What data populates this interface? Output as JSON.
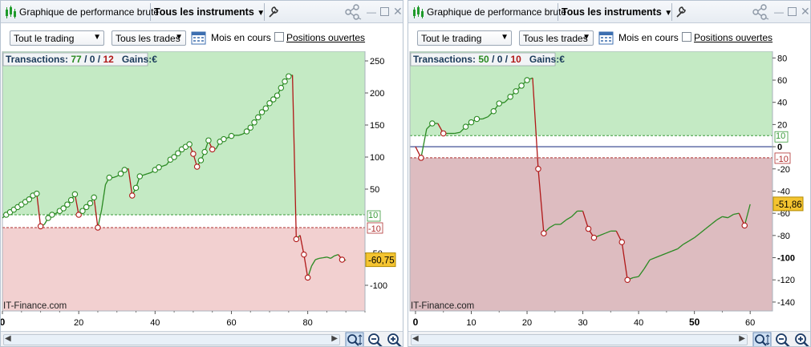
{
  "panels": [
    {
      "window_title": "Graphique de performance brute",
      "instrument_selector": "Tous les instruments",
      "trading_selector": "Tout le trading",
      "trades_selector": "Tous les trades",
      "period_label": "Mois en cours",
      "open_positions_label": "Positions ouvertes",
      "open_positions_checked": false,
      "stats": {
        "label": "Transactions:",
        "wins": "77",
        "even": "0",
        "losses": "12",
        "sep": "/",
        "gains_label": "Gains:",
        "gains_value": "€"
      },
      "watermark": "IT-Finance.com",
      "current_value_label": "-60,75",
      "chart_data": {
        "type": "line",
        "title": "",
        "xlabel": "",
        "ylabel": "",
        "xlim": [
          0,
          95
        ],
        "ylim": [
          -140,
          265
        ],
        "x_ticks": [
          0,
          20,
          40,
          60,
          80
        ],
        "x_tick_labels": [
          "0",
          "20",
          "40",
          "60",
          "80"
        ],
        "y_ticks": [
          250,
          200,
          150,
          100,
          50,
          -50,
          -100
        ],
        "y_tick_labels": [
          "250",
          "200",
          "150",
          "100",
          "50",
          "-50",
          "-100"
        ],
        "bands": {
          "upper": 10,
          "lower": -10,
          "upper_label": "10",
          "lower_label": "-10"
        },
        "series": [
          {
            "values": [
              [
                0,
                5
              ],
              [
                1,
                10
              ],
              [
                2,
                14
              ],
              [
                3,
                18
              ],
              [
                4,
                22
              ],
              [
                5,
                26
              ],
              [
                6,
                30
              ],
              [
                7,
                34
              ],
              [
                8,
                40
              ],
              [
                9,
                43
              ],
              [
                10,
                -8
              ],
              [
                11,
                -5
              ],
              [
                12,
                5
              ],
              [
                13,
                10
              ],
              [
                14,
                12
              ],
              [
                15,
                16
              ],
              [
                16,
                20
              ],
              [
                17,
                26
              ],
              [
                18,
                33
              ],
              [
                19,
                42
              ],
              [
                20,
                10
              ],
              [
                21,
                16
              ],
              [
                22,
                22
              ],
              [
                23,
                28
              ],
              [
                24,
                37
              ],
              [
                25,
                -10
              ],
              [
                26,
                18
              ],
              [
                27,
                57
              ],
              [
                28,
                68
              ],
              [
                29,
                68
              ],
              [
                30,
                70
              ],
              [
                31,
                74
              ],
              [
                32,
                80
              ],
              [
                33,
                82
              ],
              [
                34,
                40
              ],
              [
                35,
                52
              ],
              [
                36,
                70
              ],
              [
                37,
                72
              ],
              [
                38,
                74
              ],
              [
                39,
                76
              ],
              [
                40,
                80
              ],
              [
                41,
                84
              ],
              [
                42,
                86
              ],
              [
                43,
                88
              ],
              [
                44,
                96
              ],
              [
                45,
                100
              ],
              [
                46,
                106
              ],
              [
                47,
                112
              ],
              [
                48,
                116
              ],
              [
                49,
                120
              ],
              [
                50,
                105
              ],
              [
                51,
                85
              ],
              [
                52,
                95
              ],
              [
                53,
                108
              ],
              [
                54,
                126
              ],
              [
                55,
                112
              ],
              [
                56,
                113
              ],
              [
                57,
                124
              ],
              [
                58,
                128
              ],
              [
                59,
                130
              ],
              [
                60,
                133
              ],
              [
                61,
                134
              ],
              [
                62,
                134
              ],
              [
                63,
                136
              ],
              [
                64,
                140
              ],
              [
                65,
                146
              ],
              [
                66,
                154
              ],
              [
                67,
                162
              ],
              [
                68,
                170
              ],
              [
                69,
                176
              ],
              [
                70,
                184
              ],
              [
                71,
                190
              ],
              [
                72,
                196
              ],
              [
                73,
                208
              ],
              [
                74,
                218
              ],
              [
                75,
                226
              ],
              [
                76,
                228
              ],
              [
                77,
                -28
              ],
              [
                78,
                -22
              ],
              [
                79,
                -52
              ],
              [
                80,
                -88
              ],
              [
                81,
                -70
              ],
              [
                82,
                -60
              ],
              [
                83,
                -58
              ],
              [
                84,
                -57
              ],
              [
                85,
                -56
              ],
              [
                86,
                -58
              ],
              [
                87,
                -54
              ],
              [
                88,
                -52
              ],
              [
                89,
                -60
              ],
              [
                90,
                -60.75
              ]
            ]
          }
        ]
      }
    },
    {
      "window_title": "Graphique de performance brute",
      "instrument_selector": "Tous les instruments",
      "trading_selector": "Tout le trading",
      "trades_selector": "Tous les trades",
      "period_label": "Mois en cours",
      "open_positions_label": "Positions ouvertes",
      "open_positions_checked": false,
      "stats": {
        "label": "Transactions:",
        "wins": "50",
        "even": "0",
        "losses": "10",
        "sep": "/",
        "gains_label": "Gains:",
        "gains_value": "€"
      },
      "watermark": "IT-Finance.com",
      "current_value_label": "-51,86",
      "chart_data": {
        "type": "line",
        "title": "",
        "xlabel": "",
        "ylabel": "",
        "xlim": [
          -1,
          64
        ],
        "ylim": [
          -148,
          86
        ],
        "x_ticks": [
          0,
          10,
          20,
          30,
          40,
          50,
          60
        ],
        "x_tick_labels": [
          "0",
          "10",
          "20",
          "30",
          "40",
          "50",
          "60"
        ],
        "y_ticks": [
          80,
          60,
          40,
          20,
          0,
          -20,
          -40,
          -60,
          -80,
          -100,
          -120,
          -140
        ],
        "y_tick_labels": [
          "80",
          "60",
          "40",
          "20",
          "0",
          "-20",
          "-40",
          "-60",
          "-80",
          "-100",
          "-120",
          "-140"
        ],
        "bands": {
          "upper": 10,
          "lower": -10,
          "upper_label": "10",
          "lower_label": "-10"
        },
        "series": [
          {
            "values": [
              [
                0,
                0
              ],
              [
                1,
                -10
              ],
              [
                2,
                16
              ],
              [
                3,
                21
              ],
              [
                4,
                21
              ],
              [
                5,
                12
              ],
              [
                6,
                12
              ],
              [
                7,
                12
              ],
              [
                8,
                13
              ],
              [
                9,
                18
              ],
              [
                10,
                22
              ],
              [
                11,
                25
              ],
              [
                12,
                25
              ],
              [
                13,
                27
              ],
              [
                14,
                32
              ],
              [
                15,
                39
              ],
              [
                16,
                40
              ],
              [
                17,
                45
              ],
              [
                18,
                50
              ],
              [
                19,
                55
              ],
              [
                20,
                60
              ],
              [
                21,
                62
              ],
              [
                22,
                -20
              ],
              [
                23,
                -78
              ],
              [
                24,
                -73
              ],
              [
                25,
                -70
              ],
              [
                26,
                -70
              ],
              [
                27,
                -66
              ],
              [
                28,
                -63
              ],
              [
                29,
                -58
              ],
              [
                30,
                -58
              ],
              [
                31,
                -74
              ],
              [
                32,
                -82
              ],
              [
                33,
                -80
              ],
              [
                34,
                -78
              ],
              [
                35,
                -76
              ],
              [
                36,
                -76
              ],
              [
                37,
                -86
              ],
              [
                38,
                -120
              ],
              [
                39,
                -118
              ],
              [
                40,
                -117
              ],
              [
                41,
                -110
              ],
              [
                42,
                -102
              ],
              [
                43,
                -100
              ],
              [
                44,
                -98
              ],
              [
                45,
                -96
              ],
              [
                46,
                -94
              ],
              [
                47,
                -92
              ],
              [
                48,
                -88
              ],
              [
                49,
                -85
              ],
              [
                50,
                -82
              ],
              [
                51,
                -78
              ],
              [
                52,
                -74
              ],
              [
                53,
                -70
              ],
              [
                54,
                -66
              ],
              [
                55,
                -63
              ],
              [
                56,
                -64
              ],
              [
                57,
                -61
              ],
              [
                58,
                -60
              ],
              [
                59,
                -71
              ],
              [
                60,
                -51.86
              ]
            ]
          }
        ]
      }
    }
  ]
}
